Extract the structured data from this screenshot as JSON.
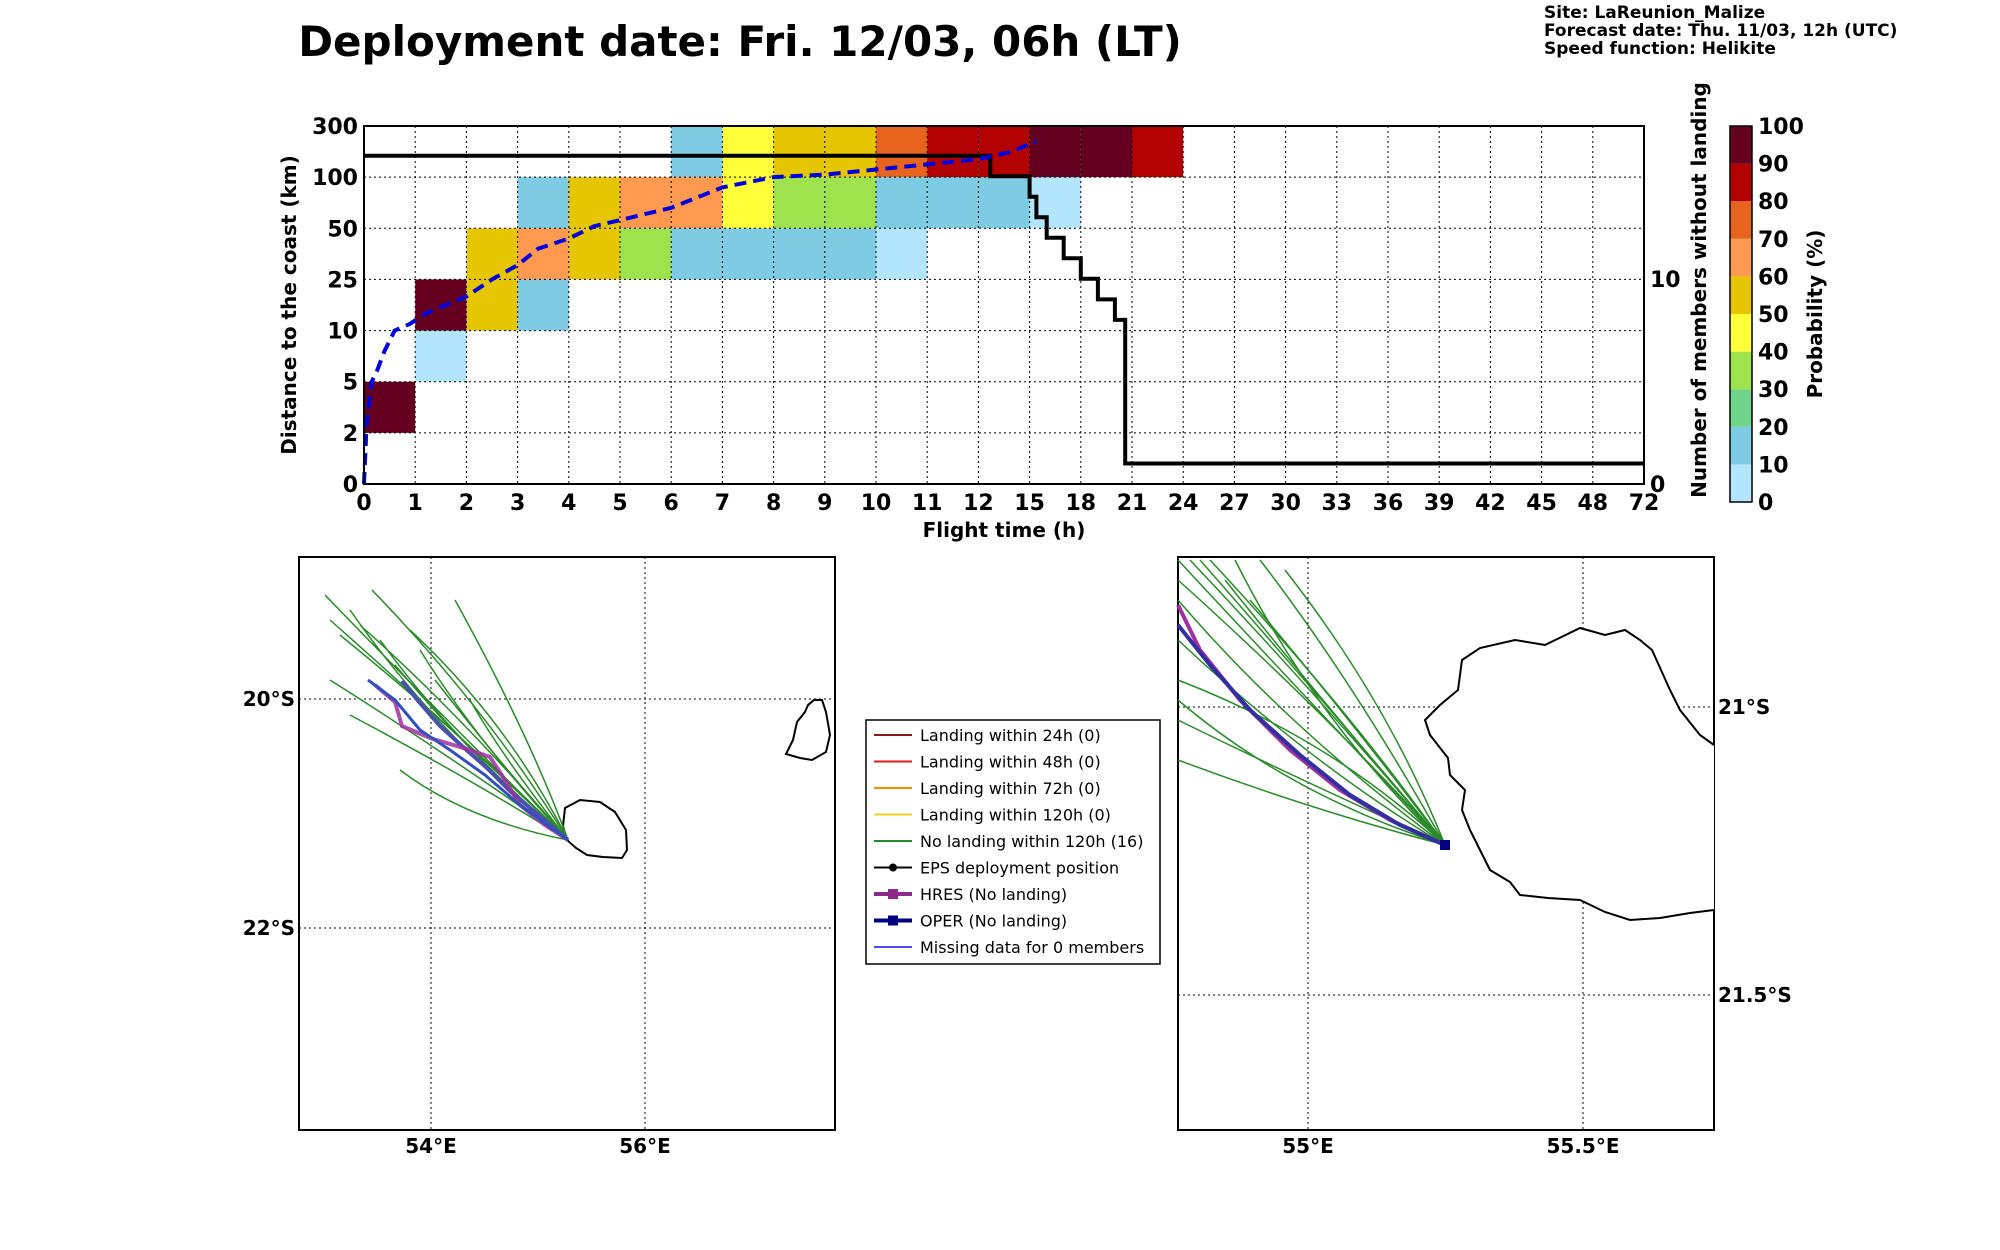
{
  "header": {
    "title": "Deployment date: Fri. 12/03, 06h (LT)",
    "site": "Site: LaReunion_Malize",
    "forecast": "Forecast date: Thu. 11/03, 12h (UTC)",
    "speed": "Speed function: Helikite"
  },
  "chart_data": [
    {
      "type": "heatmap",
      "xlabel": "Flight time (h)",
      "ylabel": "Distance to the coast (km)",
      "y2label": "Number of members without landing",
      "x_ticks": [
        "0",
        "1",
        "2",
        "3",
        "4",
        "5",
        "6",
        "7",
        "8",
        "9",
        "10",
        "11",
        "12",
        "15",
        "18",
        "21",
        "24",
        "27",
        "30",
        "33",
        "36",
        "39",
        "42",
        "45",
        "48",
        "72"
      ],
      "y_ticks": [
        "0",
        "2",
        "5",
        "10",
        "25",
        "50",
        "100",
        "300"
      ],
      "y2_ticks": [
        "0",
        "10"
      ],
      "cells": [
        {
          "x": "0-1",
          "y": "2-5",
          "p": 95
        },
        {
          "x": "1-2",
          "y": "5-10",
          "p": 5
        },
        {
          "x": "1-2",
          "y": "10-25",
          "p": 95
        },
        {
          "x": "2-3",
          "y": "10-25",
          "p": 55
        },
        {
          "x": "2-3",
          "y": "25-50",
          "p": 55
        },
        {
          "x": "3-4",
          "y": "10-25",
          "p": 15
        },
        {
          "x": "3-4",
          "y": "25-50",
          "p": 65
        },
        {
          "x": "3-4",
          "y": "50-100",
          "p": 15
        },
        {
          "x": "4-5",
          "y": "25-50",
          "p": 55
        },
        {
          "x": "4-5",
          "y": "50-100",
          "p": 55
        },
        {
          "x": "5-6",
          "y": "25-50",
          "p": 35
        },
        {
          "x": "5-6",
          "y": "50-100",
          "p": 65
        },
        {
          "x": "6-7",
          "y": "25-50",
          "p": 15
        },
        {
          "x": "6-7",
          "y": "50-100",
          "p": 65
        },
        {
          "x": "6-7",
          "y": "100-300",
          "p": 15
        },
        {
          "x": "7-8",
          "y": "25-50",
          "p": 15
        },
        {
          "x": "7-8",
          "y": "50-100",
          "p": 45
        },
        {
          "x": "7-8",
          "y": "100-300",
          "p": 45
        },
        {
          "x": "8-9",
          "y": "25-50",
          "p": 15
        },
        {
          "x": "8-9",
          "y": "50-100",
          "p": 35
        },
        {
          "x": "8-9",
          "y": "100-300",
          "p": 55
        },
        {
          "x": "9-10",
          "y": "25-50",
          "p": 15
        },
        {
          "x": "9-10",
          "y": "50-100",
          "p": 35
        },
        {
          "x": "9-10",
          "y": "100-300",
          "p": 55
        },
        {
          "x": "10-11",
          "y": "25-50",
          "p": 5
        },
        {
          "x": "10-11",
          "y": "50-100",
          "p": 15
        },
        {
          "x": "10-11",
          "y": "100-300",
          "p": 75
        },
        {
          "x": "11-12",
          "y": "50-100",
          "p": 15
        },
        {
          "x": "11-12",
          "y": "100-300",
          "p": 85
        },
        {
          "x": "12-15",
          "y": "50-100",
          "p": 15
        },
        {
          "x": "12-15",
          "y": "100-300",
          "p": 85
        },
        {
          "x": "15-18",
          "y": "50-100",
          "p": 5
        },
        {
          "x": "15-18",
          "y": "100-300",
          "p": 95
        },
        {
          "x": "18-21",
          "y": "100-300",
          "p": 95
        },
        {
          "x": "21-24",
          "y": "100-300",
          "p": 85
        }
      ],
      "mean_distance_line": [
        [
          0,
          0
        ],
        [
          0.05,
          2.5
        ],
        [
          0.15,
          5
        ],
        [
          0.25,
          6
        ],
        [
          0.4,
          8
        ],
        [
          0.6,
          10
        ],
        [
          0.9,
          12
        ],
        [
          1.2,
          15
        ],
        [
          2,
          20
        ],
        [
          2.5,
          25
        ],
        [
          3,
          32
        ],
        [
          3.4,
          40
        ],
        [
          4,
          45
        ],
        [
          4.5,
          52
        ],
        [
          5,
          58
        ],
        [
          6,
          70
        ],
        [
          7,
          90
        ],
        [
          8,
          100
        ],
        [
          9,
          110
        ],
        [
          10,
          130
        ],
        [
          11,
          150
        ],
        [
          12,
          170
        ],
        [
          14,
          200
        ],
        [
          15,
          230
        ],
        [
          15.4,
          240
        ]
      ],
      "members_without_landing": [
        [
          0,
          16
        ],
        [
          12.7,
          16
        ],
        [
          12.7,
          15
        ],
        [
          15,
          15
        ],
        [
          15,
          14
        ],
        [
          15.4,
          14
        ],
        [
          15.4,
          13
        ],
        [
          16,
          13
        ],
        [
          16,
          12
        ],
        [
          17,
          12
        ],
        [
          17,
          11
        ],
        [
          18,
          11
        ],
        [
          18,
          10
        ],
        [
          19,
          10
        ],
        [
          19,
          9
        ],
        [
          20,
          9
        ],
        [
          20,
          8
        ],
        [
          20.6,
          8
        ],
        [
          20.6,
          1
        ],
        [
          72,
          1
        ]
      ],
      "colorbar": {
        "label": "Probability (%)",
        "ticks": [
          "0",
          "10",
          "20",
          "30",
          "40",
          "50",
          "60",
          "70",
          "80",
          "90",
          "100"
        ]
      }
    }
  ],
  "maps": {
    "left": {
      "lat_labels": [
        "20°S",
        "22°S"
      ],
      "lon_labels": [
        "54°E",
        "56°E"
      ]
    },
    "right": {
      "lat_labels": [
        "21°S",
        "21.5°S"
      ],
      "lon_labels": [
        "55°E",
        "55.5°E"
      ]
    }
  },
  "legend": [
    {
      "label": "Landing within 24h (0)",
      "color": "#8b1a1a"
    },
    {
      "label": "Landing within 48h (0)",
      "color": "#e31a1c"
    },
    {
      "label": "Landing within 72h (0)",
      "color": "#ff8c00"
    },
    {
      "label": "Landing within 120h (0)",
      "color": "#f0d020"
    },
    {
      "label": "No landing within 120h (16)",
      "color": "#2a8a2a"
    },
    {
      "label": "EPS deployment position",
      "color": "#000000"
    },
    {
      "label": "HRES (No landing)",
      "color": "#8b2a8b"
    },
    {
      "label": "OPER (No landing)",
      "color": "#000080"
    },
    {
      "label": "Missing data for 0 members",
      "color": "#4a4aff"
    }
  ],
  "palette": [
    "#b3e5fc",
    "#7ecce3",
    "#6fd38a",
    "#9ee34e",
    "#ffff3a",
    "#e6c600",
    "#ff9a50",
    "#e8641e",
    "#b30000",
    "#660020"
  ]
}
